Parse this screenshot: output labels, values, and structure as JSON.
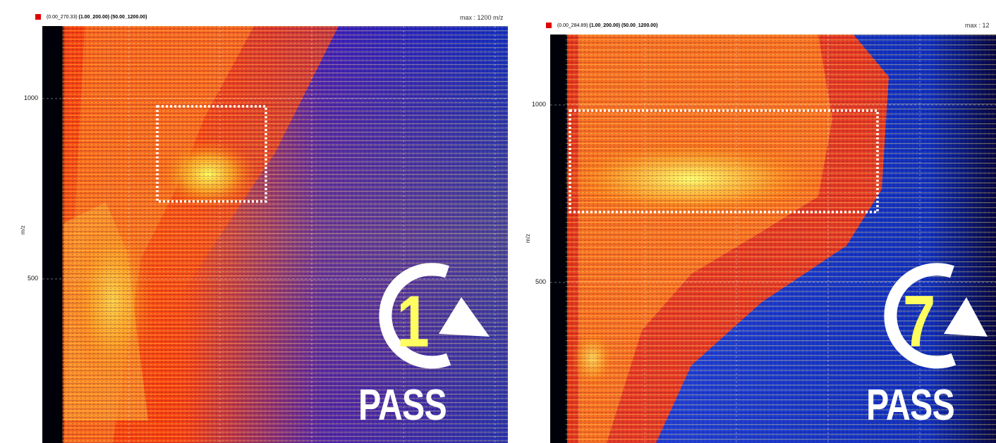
{
  "chart_data": [
    {
      "type": "heatmap",
      "header_range": "(0.00_270.33)",
      "header_params": "(1.00_200.00) (50.00_1200.00)",
      "max_label": "max : 1200 m/z",
      "ylabel": "m/z",
      "yticks": [
        500,
        1000
      ],
      "ylim": [
        50,
        1200
      ],
      "pass_number": "1",
      "pass_label": "PASS"
    },
    {
      "type": "heatmap",
      "header_range": "(0.00_284.89)",
      "header_params": "(1.00_200.00) (50.00_1200.00)",
      "max_label": "max : 12",
      "ylabel": "m/z",
      "yticks": [
        500,
        1000
      ],
      "ylim": [
        50,
        1200
      ],
      "pass_number": "7",
      "pass_label": "PASS"
    }
  ],
  "colors": {
    "low": "#1010c0",
    "mid": "#ff2000",
    "high": "#ffee40",
    "background": "#050528"
  }
}
